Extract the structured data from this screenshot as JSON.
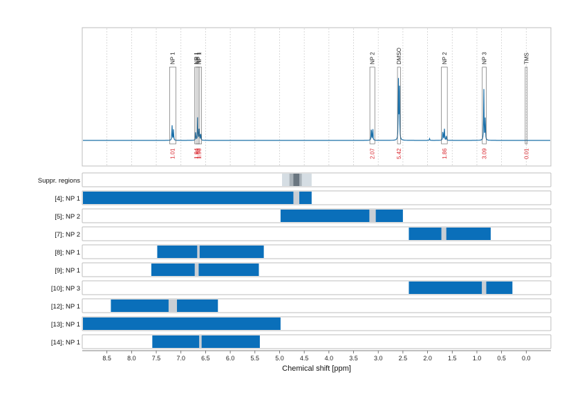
{
  "chart_data": {
    "type": "line",
    "xlabel": "Chemical shift [ppm]",
    "xlim": [
      9.0,
      -0.5
    ],
    "x_ticks": [
      "8.5",
      "8.0",
      "7.5",
      "7.0",
      "6.5",
      "6.0",
      "5.5",
      "5.0",
      "4.5",
      "4.0",
      "3.5",
      "3.0",
      "2.5",
      "2.0",
      "1.5",
      "1.0",
      "0.5",
      "0.0"
    ],
    "grid": "vertical dotted",
    "colors": {
      "spectrum": "#1a6fa8",
      "bar": "#0a6fba",
      "gap": "#c9ced4",
      "integral": "#d9222a",
      "suppr_outer": "#d5dde3",
      "suppr_mid": "#a9b2b9",
      "suppr_core": "#6a7680"
    },
    "spectrum_peaks": [
      {
        "ppm": 7.18,
        "height": 0.18
      },
      {
        "ppm": 7.15,
        "height": 0.12
      },
      {
        "ppm": 6.7,
        "height": 0.1
      },
      {
        "ppm": 6.66,
        "height": 0.25
      },
      {
        "ppm": 6.63,
        "height": 0.14
      },
      {
        "ppm": 6.6,
        "height": 0.09
      },
      {
        "ppm": 3.14,
        "height": 0.16
      },
      {
        "ppm": 3.11,
        "height": 0.14
      },
      {
        "ppm": 2.59,
        "height": 0.66
      },
      {
        "ppm": 2.57,
        "height": 0.62
      },
      {
        "ppm": 1.96,
        "height": 0.02
      },
      {
        "ppm": 1.69,
        "height": 0.12
      },
      {
        "ppm": 1.66,
        "height": 0.15
      },
      {
        "ppm": 1.62,
        "height": 0.06
      },
      {
        "ppm": 0.86,
        "height": 0.58
      },
      {
        "ppm": 0.83,
        "height": 0.25
      }
    ],
    "peak_labels": [
      {
        "label": "NP 1",
        "ppm": 7.17,
        "from": 7.23,
        "to": 7.1,
        "integral": "1.01"
      },
      {
        "label": "NP 1",
        "ppm": 6.69,
        "from": 6.72,
        "to": 6.65,
        "integral": "1.94"
      },
      {
        "label": "NP 1",
        "ppm": 6.66,
        "from": 6.69,
        "to": 6.62,
        "integral": "1.93"
      },
      {
        "label": "NP 1",
        "ppm": 6.63,
        "from": 6.65,
        "to": 6.58,
        "integral": "1.96"
      },
      {
        "label": "NP 2",
        "ppm": 3.12,
        "from": 3.17,
        "to": 3.07,
        "integral": "2.07"
      },
      {
        "label": "DMSO",
        "ppm": 2.58,
        "from": 2.61,
        "to": 2.55,
        "integral": "5.42"
      },
      {
        "label": "NP 2",
        "ppm": 1.66,
        "from": 1.72,
        "to": 1.6,
        "integral": "1.86"
      },
      {
        "label": "NP 3",
        "ppm": 0.85,
        "from": 0.89,
        "to": 0.81,
        "integral": "3.09"
      },
      {
        "label": "TMS",
        "ppm": 0.0,
        "from": 0.02,
        "to": -0.02,
        "integral": "0.01"
      }
    ],
    "rows": [
      {
        "label": "Suppr. regions",
        "suppr": true,
        "layers": [
          {
            "from": 4.95,
            "to": 4.35,
            "level": "outer"
          },
          {
            "from": 4.8,
            "to": 4.55,
            "level": "mid"
          },
          {
            "from": 4.72,
            "to": 4.6,
            "level": "core"
          }
        ]
      },
      {
        "label": "[4]; NP 1",
        "from": 9.0,
        "to": 4.35,
        "gap": [
          4.72,
          4.6
        ]
      },
      {
        "label": "[5]; NP 2",
        "from": 4.98,
        "to": 2.5,
        "gap": [
          3.18,
          3.05
        ]
      },
      {
        "label": "[7]; NP 2",
        "from": 2.38,
        "to": 0.72,
        "gap": [
          1.72,
          1.62
        ]
      },
      {
        "label": "[8]; NP 1",
        "from": 7.48,
        "to": 5.32,
        "gap": [
          6.67,
          6.62
        ]
      },
      {
        "label": "[9]; NP 1",
        "from": 7.6,
        "to": 5.42,
        "gap": [
          6.72,
          6.64
        ]
      },
      {
        "label": "[10]; NP 3",
        "from": 2.38,
        "to": 0.28,
        "gap": [
          0.9,
          0.81
        ]
      },
      {
        "label": "[12]; NP 1",
        "from": 8.42,
        "to": 6.25,
        "gap": [
          7.25,
          7.08
        ]
      },
      {
        "label": "[13]; NP 1",
        "from": 9.0,
        "to": 4.98
      },
      {
        "label": "[14]; NP 1",
        "from": 7.58,
        "to": 5.4,
        "gap": [
          6.63,
          6.58
        ]
      }
    ]
  }
}
